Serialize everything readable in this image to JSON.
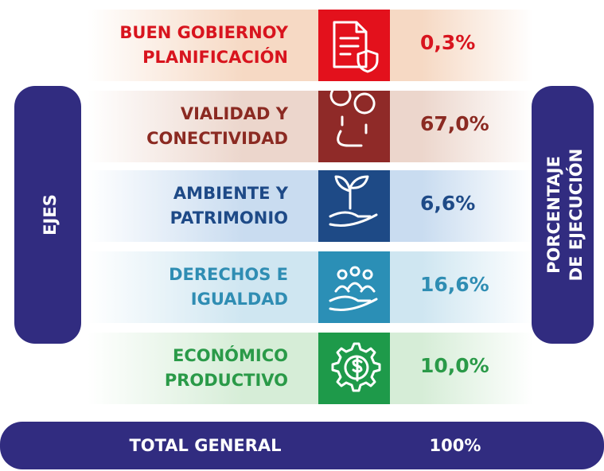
{
  "left_label": "EJES",
  "right_label": [
    "PORCENTAJE",
    "DE EJECUCIÓN"
  ],
  "rows": [
    {
      "label": [
        "BUEN GOBIERNOY",
        "PLANIFICACIÓN"
      ],
      "value": "0,3%"
    },
    {
      "label": [
        "VIALIDAD Y",
        "CONECTIVIDAD"
      ],
      "value": "67,0%"
    },
    {
      "label": [
        "AMBIENTE Y",
        "PATRIMONIO"
      ],
      "value": "6,6%"
    },
    {
      "label": [
        "DERECHOS E",
        "IGUALDAD"
      ],
      "value": "16,6%"
    },
    {
      "label": [
        "ECONÓMICO",
        "PRODUCTIVO"
      ],
      "value": "10,0%"
    }
  ],
  "total": {
    "label": "TOTAL GENERAL",
    "value": "100%"
  }
}
